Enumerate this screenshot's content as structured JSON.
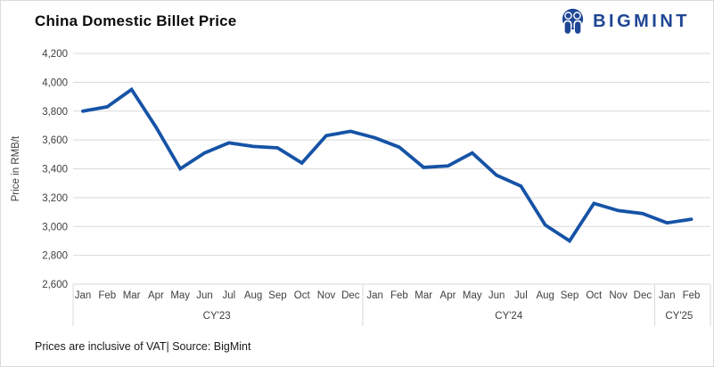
{
  "header": {
    "title": "China Domestic Billet Price",
    "brand": "BIGMINT"
  },
  "footer": {
    "note": "Prices are inclusive of VAT| Source: BigMint"
  },
  "colors": {
    "line": "#1653a6",
    "brand": "#1e4694",
    "grid": "#d9d9d9",
    "axis_text": "#3f3f3f"
  },
  "chart_data": {
    "type": "line",
    "title": "China Domestic Billet Price",
    "ylabel": "Price in RMB/t",
    "ylim": [
      2600,
      4200
    ],
    "ytick_step": 200,
    "grid": true,
    "legend": false,
    "year_groups": [
      {
        "label": "CY'23",
        "months": [
          "Jan",
          "Feb",
          "Mar",
          "Apr",
          "May",
          "Jun",
          "Jul",
          "Aug",
          "Sep",
          "Oct",
          "Nov",
          "Dec"
        ]
      },
      {
        "label": "CY'24",
        "months": [
          "Jan",
          "Feb",
          "Mar",
          "Apr",
          "May",
          "Jun",
          "Jul",
          "Aug",
          "Sep",
          "Oct",
          "Nov",
          "Dec"
        ]
      },
      {
        "label": "CY'25",
        "months": [
          "Jan",
          "Feb"
        ]
      }
    ],
    "series": [
      {
        "name": "China Domestic Billet Price (RMB/t)",
        "values": [
          3800,
          3830,
          3950,
          3690,
          3400,
          3510,
          3580,
          3555,
          3545,
          3440,
          3630,
          3660,
          3615,
          3550,
          3410,
          3420,
          3510,
          3355,
          3280,
          3010,
          2900,
          3160,
          3110,
          3090,
          3025,
          3050
        ]
      }
    ]
  }
}
